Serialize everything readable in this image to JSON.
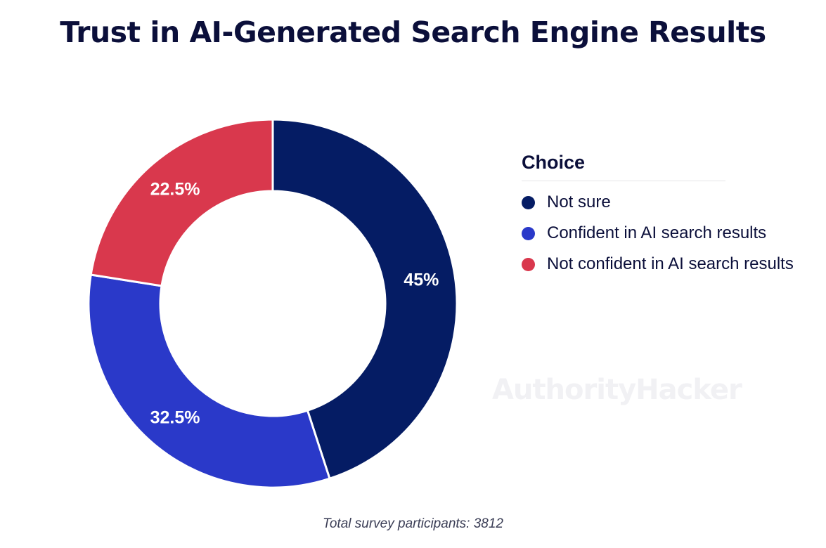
{
  "title": "Trust in AI-Generated Search Engine Results",
  "footnote": "Total survey participants: 3812",
  "watermark": "AuthorityHacker",
  "legend": {
    "title": "Choice"
  },
  "chart_data": {
    "type": "pie",
    "variant": "donut",
    "title": "Trust in AI-Generated Search Engine Results",
    "legend_title": "Choice",
    "legend_position": "right",
    "slices": [
      {
        "label": "Not sure",
        "value": 45,
        "display": "45%",
        "color": "#051c64"
      },
      {
        "label": "Confident in AI search results",
        "value": 32.5,
        "display": "32.5%",
        "color": "#2a39c9"
      },
      {
        "label": "Not confident in AI search results",
        "value": 22.5,
        "display": "22.5%",
        "color": "#d9384d"
      }
    ]
  }
}
